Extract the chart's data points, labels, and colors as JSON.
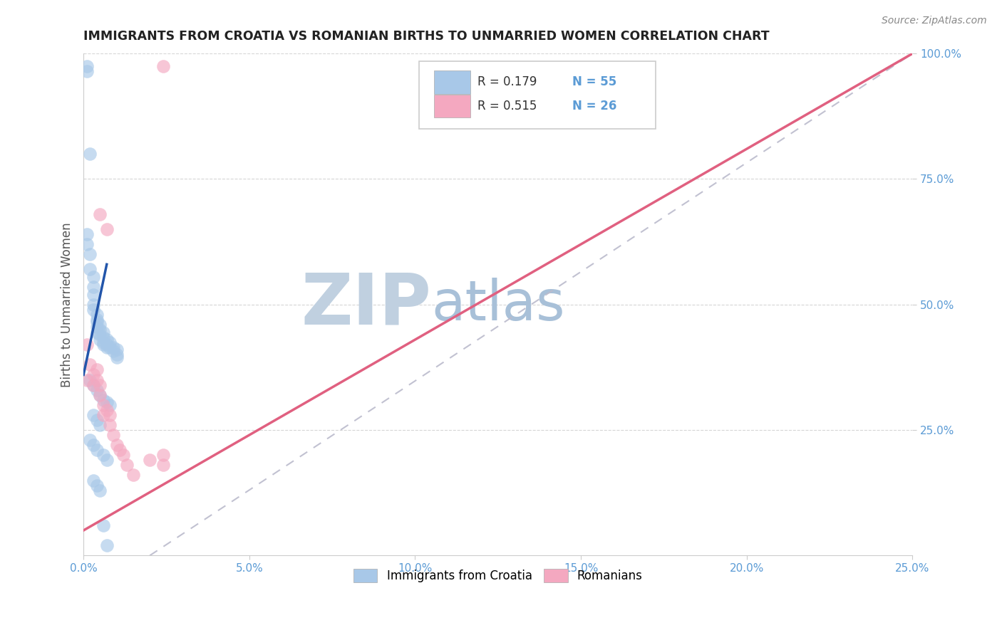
{
  "title": "IMMIGRANTS FROM CROATIA VS ROMANIAN BIRTHS TO UNMARRIED WOMEN CORRELATION CHART",
  "source": "Source: ZipAtlas.com",
  "ylabel": "Births to Unmarried Women",
  "legend_label1": "Immigrants from Croatia",
  "legend_label2": "Romanians",
  "r1": 0.179,
  "n1": 55,
  "r2": 0.515,
  "n2": 26,
  "xlim": [
    0.0,
    0.25
  ],
  "ylim": [
    0.0,
    1.0
  ],
  "xticks": [
    0.0,
    0.05,
    0.1,
    0.15,
    0.2,
    0.25
  ],
  "yticks": [
    0.25,
    0.5,
    0.75,
    1.0
  ],
  "xticklabels": [
    "0.0%",
    "5.0%",
    "10.0%",
    "15.0%",
    "20.0%",
    "25.0%"
  ],
  "yticklabels_right": [
    "25.0%",
    "50.0%",
    "75.0%",
    "100.0%"
  ],
  "color_blue": "#A8C8E8",
  "color_pink": "#F4A8C0",
  "color_line_blue": "#2255AA",
  "color_line_pink": "#E06080",
  "color_diag": "#BBBBCC",
  "color_tick": "#5B9BD5",
  "watermark_zip": "ZIP",
  "watermark_atlas": "atlas",
  "watermark_color_zip": "#C0D0E0",
  "watermark_color_atlas": "#A8C0D8",
  "blue_dots_x": [
    0.001,
    0.001,
    0.002,
    0.001,
    0.001,
    0.002,
    0.002,
    0.003,
    0.003,
    0.003,
    0.003,
    0.003,
    0.004,
    0.004,
    0.004,
    0.004,
    0.004,
    0.005,
    0.005,
    0.005,
    0.005,
    0.006,
    0.006,
    0.006,
    0.006,
    0.007,
    0.007,
    0.007,
    0.008,
    0.008,
    0.009,
    0.009,
    0.01,
    0.01,
    0.01,
    0.002,
    0.003,
    0.004,
    0.005,
    0.006,
    0.007,
    0.008,
    0.003,
    0.004,
    0.005,
    0.002,
    0.003,
    0.004,
    0.006,
    0.007,
    0.003,
    0.004,
    0.005,
    0.006,
    0.007
  ],
  "blue_dots_y": [
    0.975,
    0.965,
    0.8,
    0.64,
    0.62,
    0.6,
    0.57,
    0.555,
    0.535,
    0.52,
    0.5,
    0.49,
    0.48,
    0.47,
    0.465,
    0.455,
    0.445,
    0.46,
    0.45,
    0.44,
    0.43,
    0.445,
    0.435,
    0.425,
    0.42,
    0.43,
    0.42,
    0.415,
    0.425,
    0.415,
    0.415,
    0.408,
    0.41,
    0.4,
    0.395,
    0.35,
    0.34,
    0.33,
    0.32,
    0.31,
    0.305,
    0.3,
    0.28,
    0.27,
    0.26,
    0.23,
    0.22,
    0.21,
    0.2,
    0.19,
    0.15,
    0.14,
    0.13,
    0.06,
    0.02
  ],
  "pink_dots_x": [
    0.001,
    0.001,
    0.002,
    0.003,
    0.003,
    0.004,
    0.004,
    0.005,
    0.005,
    0.005,
    0.006,
    0.006,
    0.007,
    0.007,
    0.008,
    0.008,
    0.009,
    0.01,
    0.011,
    0.012,
    0.013,
    0.015,
    0.02,
    0.024,
    0.024,
    0.024
  ],
  "pink_dots_y": [
    0.42,
    0.35,
    0.38,
    0.36,
    0.34,
    0.37,
    0.35,
    0.68,
    0.34,
    0.32,
    0.3,
    0.28,
    0.65,
    0.29,
    0.28,
    0.26,
    0.24,
    0.22,
    0.21,
    0.2,
    0.18,
    0.16,
    0.19,
    0.2,
    0.18,
    0.975
  ],
  "pink_trendline_x": [
    0.0,
    0.25
  ],
  "pink_trendline_y": [
    0.05,
    1.0
  ],
  "blue_trendline_x": [
    0.0,
    0.007
  ],
  "blue_trendline_y": [
    0.36,
    0.58
  ]
}
